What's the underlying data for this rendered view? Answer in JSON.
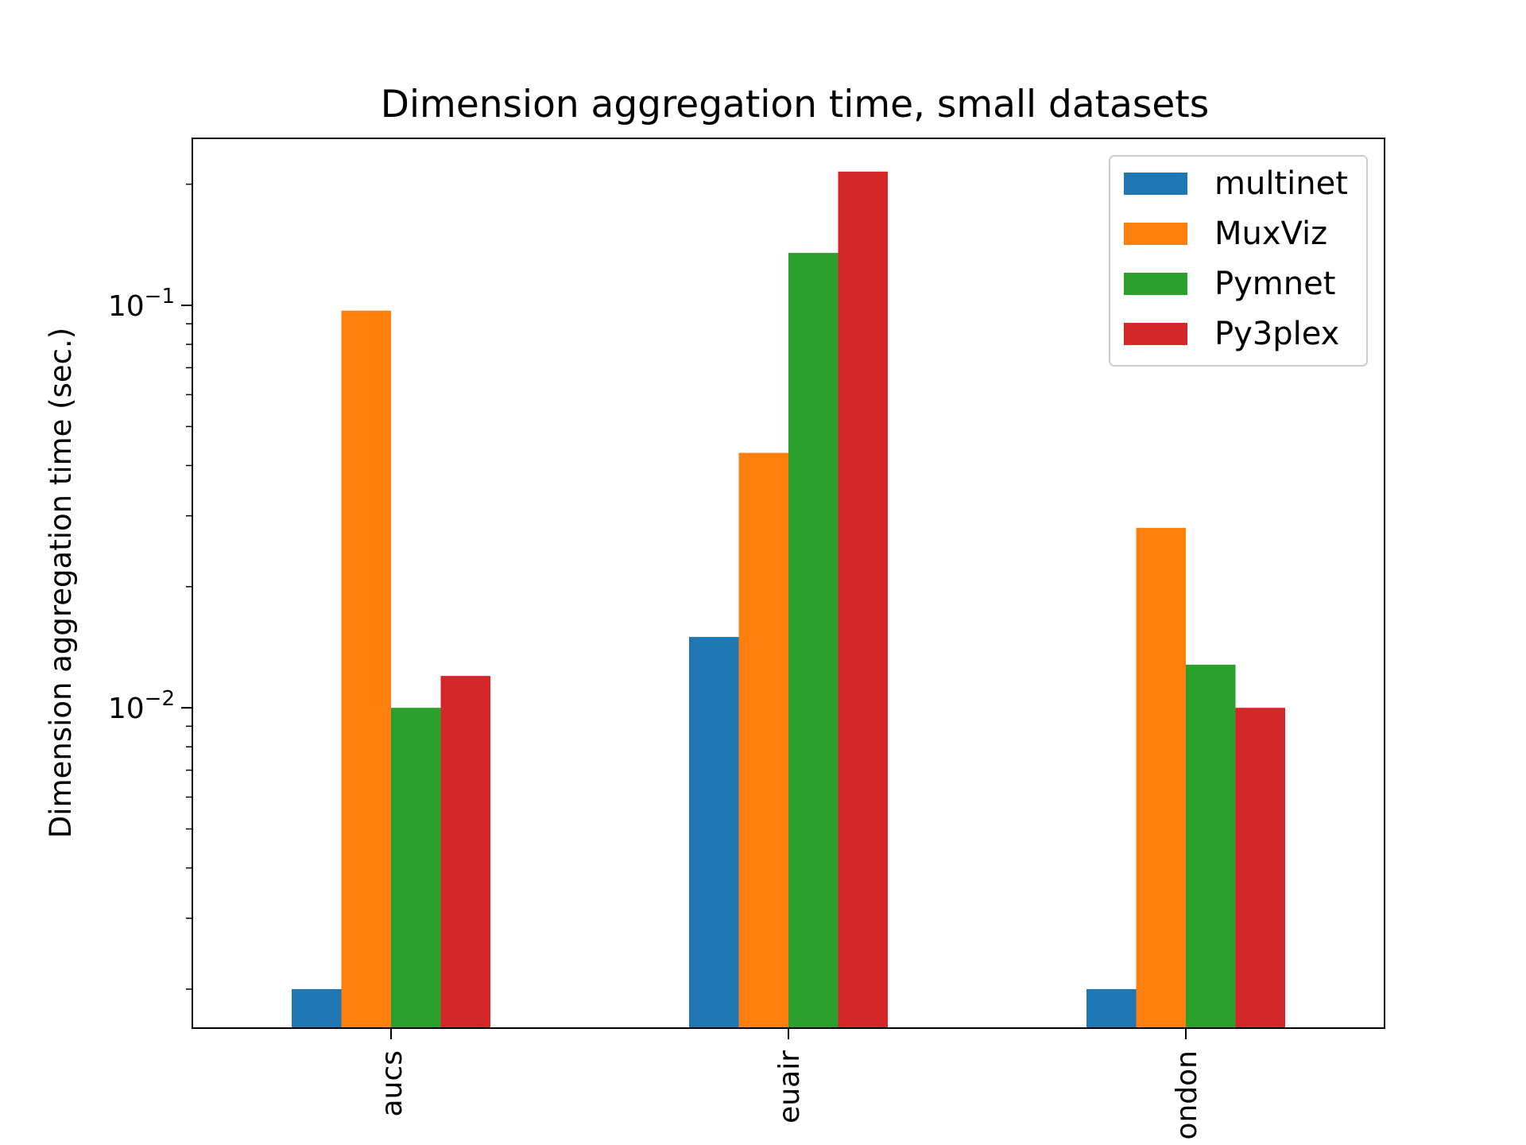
{
  "chart_data": {
    "type": "bar",
    "title": "Dimension aggregation time, small datasets",
    "xlabel": "",
    "ylabel": "Dimension aggregation time (sec.)",
    "yscale": "log",
    "ylim": [
      0.0016,
      0.26
    ],
    "y_major_ticks": [
      {
        "value": 0.1,
        "base": "10",
        "exp": "−1"
      },
      {
        "value": 0.01,
        "base": "10",
        "exp": "−2"
      }
    ],
    "y_minor_ticks": [
      0.002,
      0.003,
      0.004,
      0.005,
      0.006,
      0.007,
      0.008,
      0.009,
      0.02,
      0.03,
      0.04,
      0.05,
      0.06,
      0.07,
      0.08,
      0.09,
      0.2
    ],
    "categories": [
      "aucs",
      "euair",
      "london"
    ],
    "tick_labels": [
      "aucs",
      "euair",
      "ondon"
    ],
    "series": [
      {
        "name": "multinet",
        "color": "#1f77b4",
        "values": [
          0.002,
          0.015,
          0.002
        ]
      },
      {
        "name": "MuxViz",
        "color": "#ff7f0e",
        "values": [
          0.097,
          0.043,
          0.028
        ]
      },
      {
        "name": "Pymnet",
        "color": "#2ca02c",
        "values": [
          0.01,
          0.135,
          0.0128
        ]
      },
      {
        "name": "Py3plex",
        "color": "#d62728",
        "values": [
          0.012,
          0.215,
          0.01
        ]
      }
    ],
    "legend": {
      "position": "top-right"
    },
    "grid": false
  }
}
